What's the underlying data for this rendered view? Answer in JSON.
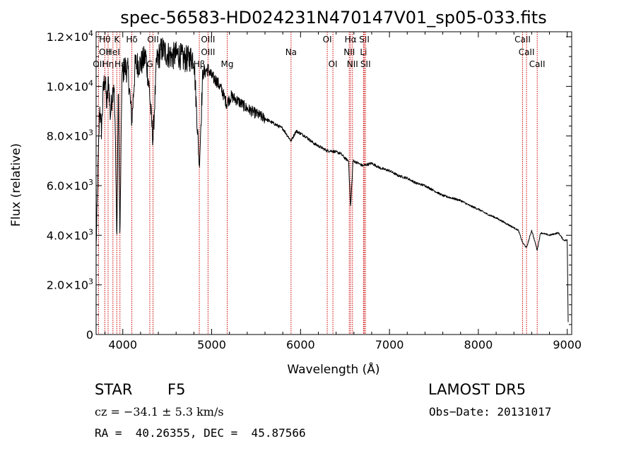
{
  "chart_data": {
    "type": "line",
    "title": "spec-56583-HD024231N470147V01_sp05-033.fits",
    "xlabel": "Wavelength (Å)",
    "ylabel": "Flux (relative)",
    "xlim": [
      3700,
      9050
    ],
    "ylim": [
      0,
      12200
    ],
    "x_ticks": [
      4000,
      5000,
      6000,
      7000,
      8000,
      9000
    ],
    "x_tick_labels": [
      "4000",
      "5000",
      "6000",
      "7000",
      "8000",
      "9000"
    ],
    "y_ticks": [
      0,
      2000,
      4000,
      6000,
      8000,
      10000,
      12000
    ],
    "y_tick_labels": [
      {
        "mant": "0",
        "exp": ""
      },
      {
        "mant": "2.0×10",
        "exp": "3"
      },
      {
        "mant": "4.0×10",
        "exp": "3"
      },
      {
        "mant": "6.0×10",
        "exp": "3"
      },
      {
        "mant": "8.0×10",
        "exp": "3"
      },
      {
        "mant": "1.0×10",
        "exp": "4"
      },
      {
        "mant": "1.2×10",
        "exp": "4"
      }
    ],
    "grid": false,
    "series": [
      {
        "color": "#000000",
        "x": [
          3700,
          3720,
          3740,
          3760,
          3780,
          3800,
          3820,
          3840,
          3860,
          3880,
          3900,
          3920,
          3933,
          3950,
          3968,
          3990,
          4020,
          4060,
          4102,
          4140,
          4200,
          4260,
          4300,
          4340,
          4380,
          4440,
          4500,
          4560,
          4620,
          4680,
          4740,
          4800,
          4861,
          4900,
          4960,
          5000,
          5060,
          5120,
          5167,
          5220,
          5300,
          5400,
          5500,
          5600,
          5700,
          5800,
          5893,
          5950,
          6050,
          6150,
          6250,
          6300,
          6350,
          6450,
          6500,
          6540,
          6563,
          6590,
          6650,
          6700,
          6800,
          6900,
          7000,
          7100,
          7200,
          7300,
          7400,
          7500,
          7600,
          7700,
          7800,
          7900,
          8000,
          8100,
          8200,
          8300,
          8400,
          8450,
          8498,
          8542,
          8600,
          8662,
          8700,
          8800,
          8900,
          8960,
          9000,
          9010
        ],
        "y": [
          3500,
          6500,
          9200,
          8200,
          9800,
          10400,
          9200,
          10300,
          8800,
          9600,
          10200,
          7400,
          3600,
          10000,
          3800,
          10400,
          10800,
          10600,
          8600,
          10900,
          10900,
          11200,
          9800,
          7800,
          11000,
          11500,
          11300,
          11200,
          11300,
          11100,
          11100,
          11200,
          6800,
          10500,
          10700,
          10400,
          10200,
          9800,
          9300,
          9600,
          9400,
          9100,
          8900,
          8700,
          8500,
          8300,
          7800,
          8200,
          8000,
          7700,
          7500,
          7400,
          7400,
          7300,
          7100,
          7000,
          5100,
          7000,
          6900,
          6800,
          6900,
          6700,
          6600,
          6400,
          6300,
          6100,
          6000,
          5800,
          5600,
          5500,
          5400,
          5200,
          5050,
          4850,
          4700,
          4500,
          4300,
          4200,
          3700,
          3500,
          4200,
          3400,
          4100,
          4000,
          4100,
          3800,
          3800,
          500
        ]
      }
    ],
    "lines": [
      {
        "x": 3728,
        "labels": [
          "OII"
        ],
        "row": [
          3
        ]
      },
      {
        "x": 3798,
        "labels": [
          "Hθ",
          "OII"
        ],
        "row": [
          1,
          2
        ]
      },
      {
        "x": 3835,
        "labels": [
          "Hη"
        ],
        "row": [
          3
        ]
      },
      {
        "x": 3889,
        "labels": [
          "HeI"
        ],
        "row": [
          2
        ]
      },
      {
        "x": 3933,
        "labels": [
          "K"
        ],
        "row": [
          1
        ]
      },
      {
        "x": 3968,
        "labels": [
          "Hε"
        ],
        "row": [
          3
        ]
      },
      {
        "x": 4102,
        "labels": [
          "Hδ"
        ],
        "row": [
          1
        ]
      },
      {
        "x": 4304,
        "labels": [
          "G"
        ],
        "row": [
          3
        ]
      },
      {
        "x": 4340,
        "labels": [
          "OII"
        ],
        "row": [
          1
        ]
      },
      {
        "x": 4861,
        "labels": [
          "Hβ"
        ],
        "row": [
          3
        ]
      },
      {
        "x": 4959,
        "labels": [
          "OIII",
          "OIII"
        ],
        "row": [
          1,
          2
        ]
      },
      {
        "x": 5175,
        "labels": [
          "Mg"
        ],
        "row": [
          3
        ]
      },
      {
        "x": 5893,
        "labels": [
          "Na"
        ],
        "row": [
          2
        ]
      },
      {
        "x": 6300,
        "labels": [
          "OI"
        ],
        "row": [
          1
        ]
      },
      {
        "x": 6364,
        "labels": [
          "OI"
        ],
        "row": [
          3
        ]
      },
      {
        "x": 6548,
        "labels": [
          "NII"
        ],
        "row": [
          2
        ]
      },
      {
        "x": 6563,
        "labels": [
          "Hα"
        ],
        "row": [
          1
        ]
      },
      {
        "x": 6584,
        "labels": [
          "NII"
        ],
        "row": [
          3
        ]
      },
      {
        "x": 6708,
        "labels": [
          "Li"
        ],
        "row": [
          2
        ]
      },
      {
        "x": 6717,
        "labels": [
          "SII"
        ],
        "row": [
          1
        ]
      },
      {
        "x": 6731,
        "labels": [
          "SII"
        ],
        "row": [
          3
        ]
      },
      {
        "x": 8498,
        "labels": [
          "CaII"
        ],
        "row": [
          1
        ]
      },
      {
        "x": 8542,
        "labels": [
          "CaII"
        ],
        "row": [
          2
        ]
      },
      {
        "x": 8662,
        "labels": [
          "CaII"
        ],
        "row": [
          3
        ]
      }
    ],
    "line_color": "#cc0000"
  },
  "info": {
    "object_class": "STAR",
    "subclass": "F5",
    "cz": "cz = −34.1 ± 5.3 km/s",
    "coords": "RA =  40.26355, DEC =  45.87566",
    "survey": "LAMOST DR5",
    "obs_date": "Obs−Date: 20131017"
  }
}
